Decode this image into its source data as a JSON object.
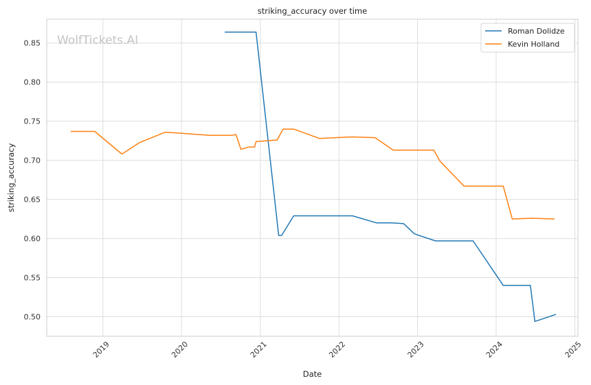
{
  "chart_data": {
    "type": "line",
    "title": "striking_accuracy over time",
    "xlabel": "Date",
    "ylabel": "striking_accuracy",
    "watermark": "WolfTickets.AI",
    "x_ticks": [
      "2019",
      "2020",
      "2021",
      "2022",
      "2023",
      "2024",
      "2025"
    ],
    "y_ticks": [
      "0.50",
      "0.55",
      "0.60",
      "0.65",
      "0.70",
      "0.75",
      "0.80",
      "0.85"
    ],
    "xlim": [
      "2018-04-15",
      "2025-01-15"
    ],
    "ylim": [
      0.475,
      0.8805
    ],
    "grid": true,
    "legend_position": "top-right",
    "series": [
      {
        "name": "Roman Dolidze",
        "color": "#1f77b4",
        "points": [
          [
            "2020-07-20",
            0.864
          ],
          [
            "2020-12-12",
            0.864
          ],
          [
            "2021-03-27",
            0.604
          ],
          [
            "2021-04-10",
            0.604
          ],
          [
            "2021-06-05",
            0.629
          ],
          [
            "2022-03-05",
            0.629
          ],
          [
            "2022-06-25",
            0.62
          ],
          [
            "2022-09-03",
            0.62
          ],
          [
            "2022-10-29",
            0.619
          ],
          [
            "2022-12-17",
            0.606
          ],
          [
            "2023-03-25",
            0.597
          ],
          [
            "2023-09-16",
            0.597
          ],
          [
            "2024-02-03",
            0.54
          ],
          [
            "2024-06-08",
            0.54
          ],
          [
            "2024-06-29",
            0.494
          ],
          [
            "2024-10-05",
            0.503
          ]
        ]
      },
      {
        "name": "Kevin Holland",
        "color": "#ff7f0e",
        "points": [
          [
            "2018-08-04",
            0.737
          ],
          [
            "2018-11-24",
            0.737
          ],
          [
            "2019-03-30",
            0.708
          ],
          [
            "2019-06-22",
            0.723
          ],
          [
            "2019-10-18",
            0.736
          ],
          [
            "2020-05-13",
            0.732
          ],
          [
            "2020-08-22",
            0.732
          ],
          [
            "2020-09-10",
            0.733
          ],
          [
            "2020-10-03",
            0.714
          ],
          [
            "2020-11-07",
            0.717
          ],
          [
            "2020-12-05",
            0.717
          ],
          [
            "2020-12-12",
            0.724
          ],
          [
            "2021-03-20",
            0.726
          ],
          [
            "2021-04-17",
            0.74
          ],
          [
            "2021-06-05",
            0.74
          ],
          [
            "2021-10-02",
            0.728
          ],
          [
            "2022-03-05",
            0.73
          ],
          [
            "2022-06-18",
            0.729
          ],
          [
            "2022-09-10",
            0.713
          ],
          [
            "2023-03-18",
            0.713
          ],
          [
            "2023-04-15",
            0.699
          ],
          [
            "2023-08-05",
            0.667
          ],
          [
            "2024-02-03",
            0.667
          ],
          [
            "2024-03-16",
            0.625
          ],
          [
            "2024-06-15",
            0.626
          ],
          [
            "2024-09-28",
            0.625
          ]
        ]
      }
    ]
  }
}
